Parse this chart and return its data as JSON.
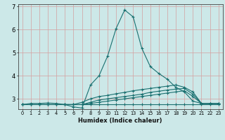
{
  "xlabel": "Humidex (Indice chaleur)",
  "background_color": "#cce8e8",
  "grid_color": "#d4a0a0",
  "line_color": "#1a7070",
  "xlim": [
    -0.5,
    23.5
  ],
  "ylim": [
    2.55,
    7.1
  ],
  "xtick_labels": [
    "0",
    "1",
    "2",
    "3",
    "4",
    "5",
    "6",
    "7",
    "8",
    "9",
    "10",
    "11",
    "12",
    "13",
    "14",
    "15",
    "16",
    "17",
    "18",
    "19",
    "20",
    "21",
    "22",
    "23"
  ],
  "yticks": [
    3,
    4,
    5,
    6,
    7
  ],
  "lines": [
    [
      2.75,
      2.8,
      2.8,
      2.82,
      2.8,
      2.75,
      2.65,
      2.6,
      3.6,
      4.0,
      4.85,
      6.05,
      6.85,
      6.55,
      5.2,
      4.4,
      4.1,
      3.85,
      3.5,
      3.3,
      2.9,
      2.8,
      2.8,
      2.8
    ],
    [
      2.75,
      2.75,
      2.75,
      2.75,
      2.75,
      2.75,
      2.75,
      2.85,
      3.0,
      3.1,
      3.15,
      3.22,
      3.28,
      3.35,
      3.4,
      3.45,
      3.5,
      3.55,
      3.6,
      3.5,
      3.3,
      2.8,
      2.8,
      2.8
    ],
    [
      2.75,
      2.75,
      2.75,
      2.75,
      2.75,
      2.75,
      2.75,
      2.75,
      2.85,
      2.95,
      3.0,
      3.05,
      3.1,
      3.15,
      3.2,
      3.28,
      3.33,
      3.38,
      3.42,
      3.45,
      3.2,
      2.8,
      2.8,
      2.8
    ],
    [
      2.75,
      2.75,
      2.75,
      2.75,
      2.75,
      2.75,
      2.75,
      2.75,
      2.8,
      2.85,
      2.9,
      2.95,
      3.0,
      3.05,
      3.1,
      3.15,
      3.2,
      3.25,
      3.3,
      3.35,
      3.1,
      2.8,
      2.8,
      2.8
    ],
    [
      2.75,
      2.75,
      2.75,
      2.75,
      2.75,
      2.75,
      2.75,
      2.75,
      2.75,
      2.75,
      2.75,
      2.75,
      2.75,
      2.75,
      2.75,
      2.75,
      2.75,
      2.75,
      2.75,
      2.75,
      2.75,
      2.75,
      2.75,
      2.75
    ]
  ]
}
